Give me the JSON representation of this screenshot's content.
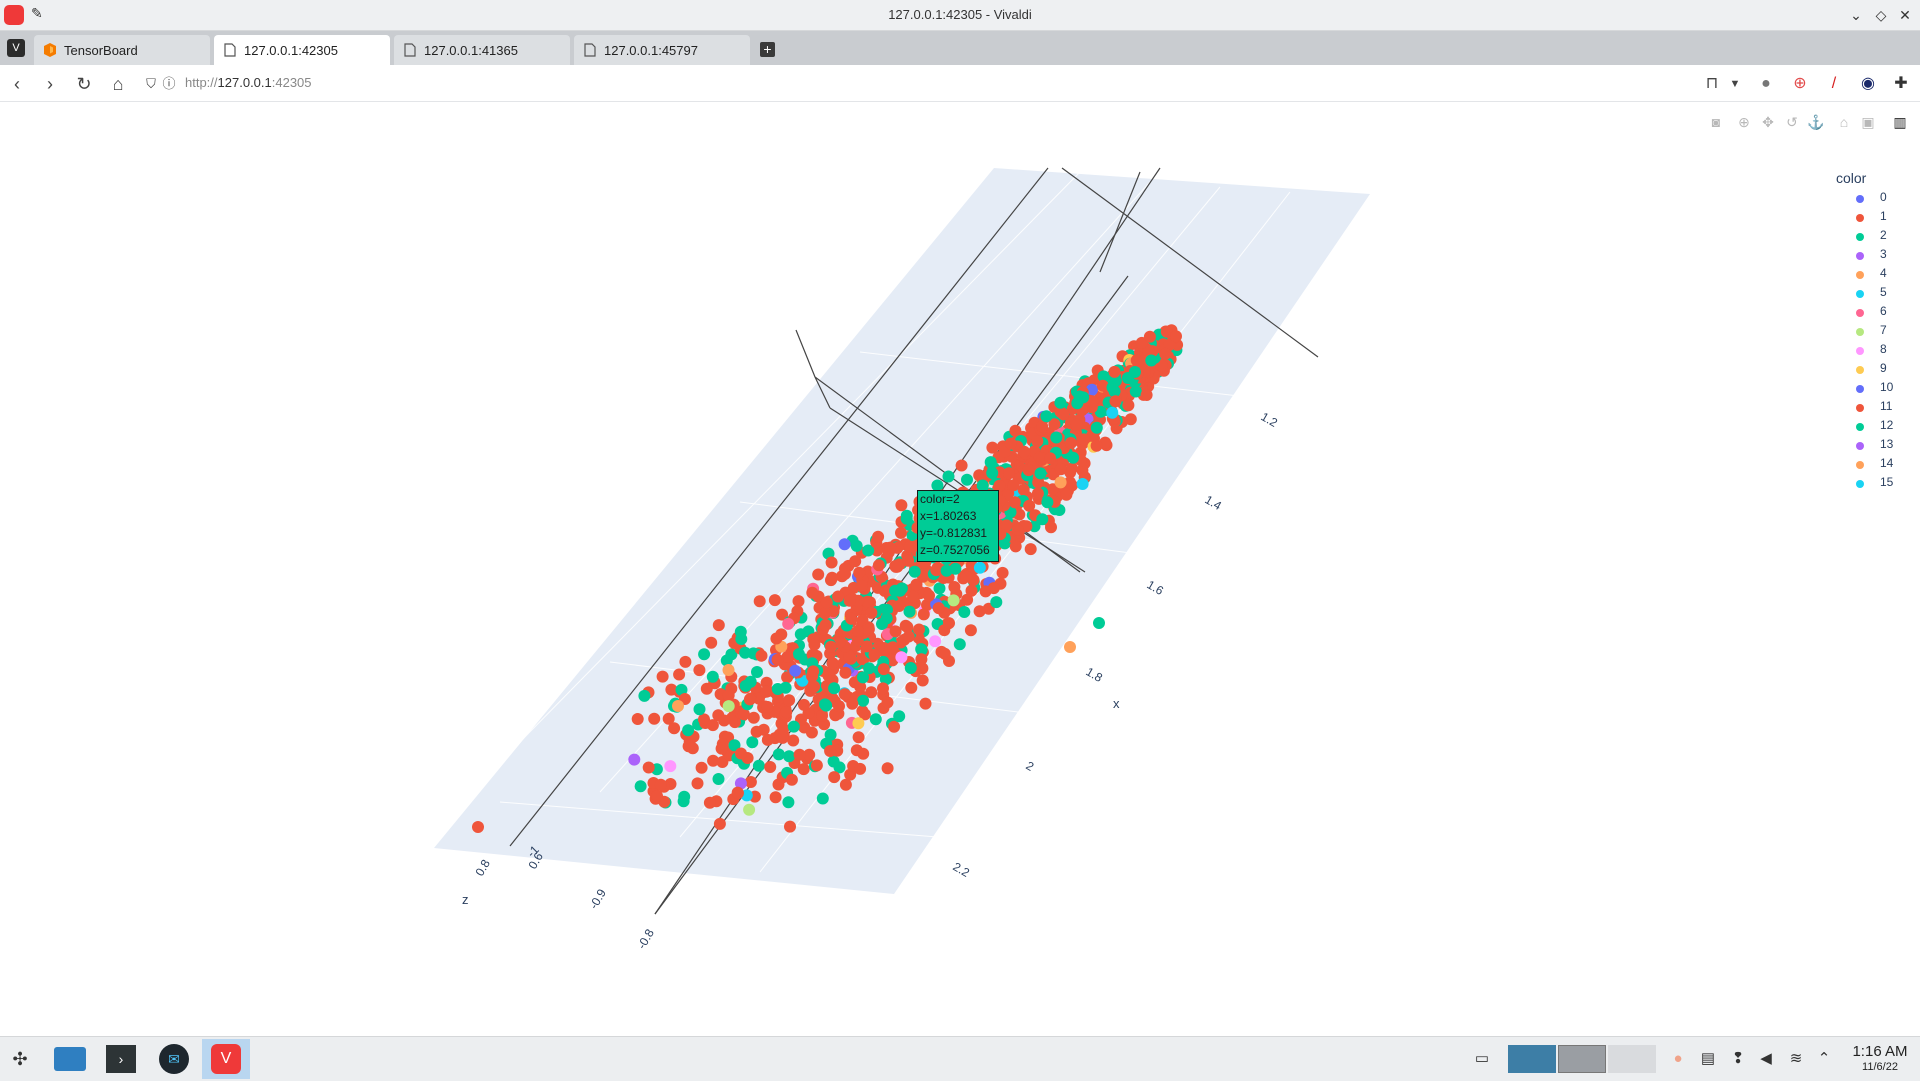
{
  "window": {
    "title": "127.0.0.1:42305 - Vivaldi",
    "controls": [
      "minimize",
      "maximize",
      "close"
    ]
  },
  "tabs": [
    {
      "label": "TensorBoard",
      "active": false,
      "icon": "tensorboard-icon"
    },
    {
      "label": "127.0.0.1:42305",
      "active": true,
      "icon": "page-icon"
    },
    {
      "label": "127.0.0.1:41365",
      "active": false,
      "icon": "page-icon"
    },
    {
      "label": "127.0.0.1:45797",
      "active": false,
      "icon": "page-icon"
    }
  ],
  "address": {
    "scheme": "http://",
    "host": "127.0.0.1",
    "port": ":42305"
  },
  "plot": {
    "axes": {
      "x": {
        "title": "x",
        "ticks": [
          "1.2",
          "1.4",
          "1.6",
          "1.8",
          "2",
          "2.2"
        ]
      },
      "y": {
        "ticks": [
          "-1",
          "-0.9",
          "-0.8"
        ]
      },
      "z": {
        "title": "z",
        "ticks": [
          "0.8",
          "0.6"
        ]
      }
    },
    "legend": {
      "title": "color",
      "items": [
        {
          "label": "0",
          "color": "#636efa"
        },
        {
          "label": "1",
          "color": "#ef553b"
        },
        {
          "label": "2",
          "color": "#00cc96"
        },
        {
          "label": "3",
          "color": "#ab63fa"
        },
        {
          "label": "4",
          "color": "#ffa15a"
        },
        {
          "label": "5",
          "color": "#19d3f3"
        },
        {
          "label": "6",
          "color": "#ff6692"
        },
        {
          "label": "7",
          "color": "#b6e880"
        },
        {
          "label": "8",
          "color": "#ff97ff"
        },
        {
          "label": "9",
          "color": "#fecb52"
        },
        {
          "label": "10",
          "color": "#636efa"
        },
        {
          "label": "11",
          "color": "#ef553b"
        },
        {
          "label": "12",
          "color": "#00cc96"
        },
        {
          "label": "13",
          "color": "#ab63fa"
        },
        {
          "label": "14",
          "color": "#ffa15a"
        },
        {
          "label": "15",
          "color": "#19d3f3"
        }
      ]
    },
    "hover": {
      "line1": "color=2",
      "line2": "x=1.80263",
      "line3": "y=-0.812831",
      "line4": "z=0.7527056"
    },
    "scene_bg": "#e5ecf6"
  },
  "taskbar": {
    "time": "1:16 AM",
    "date": "11/6/22"
  }
}
